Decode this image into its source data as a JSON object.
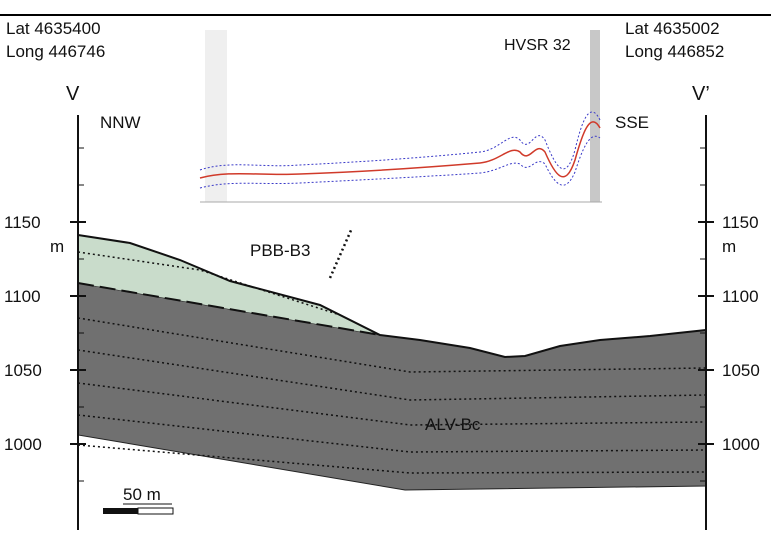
{
  "coordinates": {
    "left": {
      "lat": "Lat  4635400",
      "long": "Long 446746"
    },
    "right": {
      "lat": "Lat  4635002",
      "long": "Long 446852"
    }
  },
  "section": {
    "start": "V",
    "end": "V’",
    "start_direction": "NNW",
    "end_direction": "SSE"
  },
  "elevation_axis": {
    "unit": "m",
    "left_labels": [
      "1150",
      "1100",
      "1050",
      "1000"
    ],
    "right_labels": [
      "1150",
      "1100",
      "1050",
      "1000"
    ]
  },
  "inset": {
    "title": "HVSR 32"
  },
  "units": {
    "upper": "PBB-B3",
    "lower": "ALV-Bc"
  },
  "scale_bar": {
    "label": "50 m"
  }
}
